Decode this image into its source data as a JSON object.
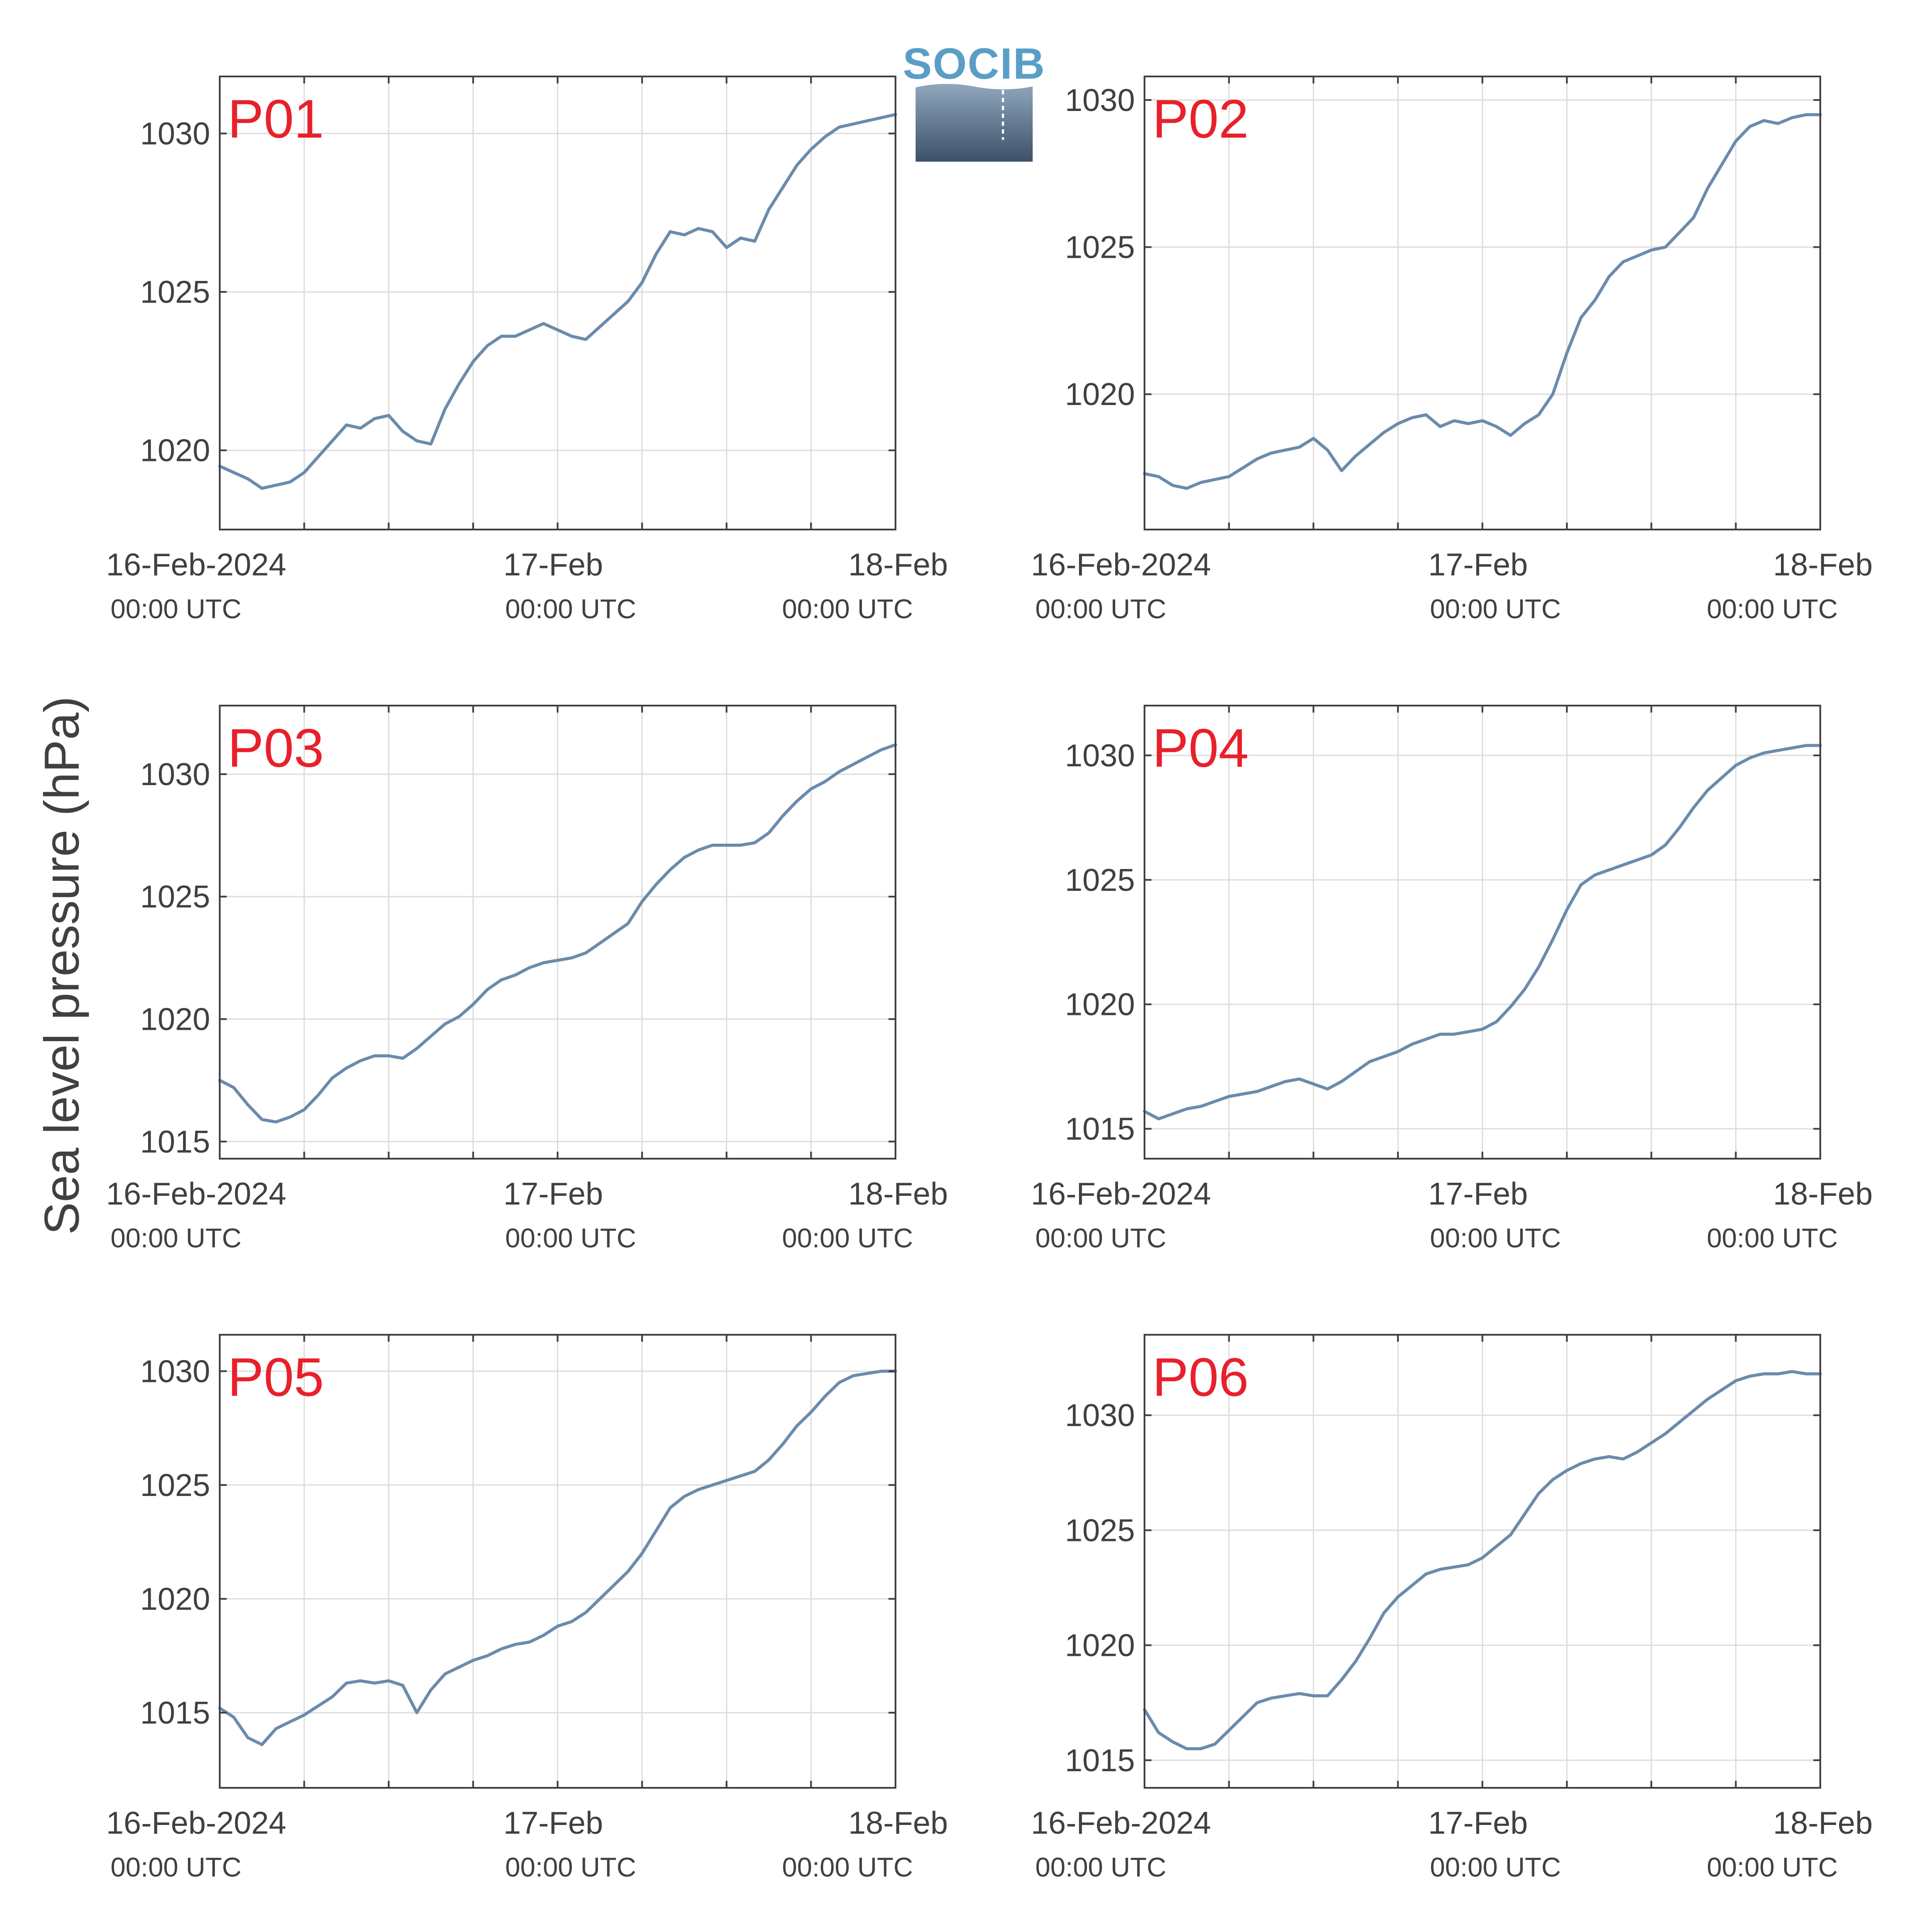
{
  "figure": {
    "ylabel": "Sea level pressure (hPa)",
    "logo_text": "SOCIB",
    "colors": {
      "line": "#6a8bac",
      "panel_label": "#e8202a",
      "grid": "#dddddd",
      "axis": "#404040"
    }
  },
  "chart_data": [
    {
      "type": "line",
      "label": "P01",
      "x_ticks": [
        {
          "line1": "16-Feb-2024",
          "line2": "00:00 UTC",
          "x": 0
        },
        {
          "line1": "17-Feb",
          "line2": "00:00 UTC",
          "x": 24
        },
        {
          "line1": "18-Feb",
          "line2": "00:00 UTC",
          "x": 48
        }
      ],
      "xlim": [
        0,
        48
      ],
      "ylim": [
        1017.5,
        1031.8
      ],
      "y_ticks": [
        1020,
        1025,
        1030
      ],
      "x": [
        0,
        1,
        2,
        3,
        4,
        5,
        6,
        7,
        8,
        9,
        10,
        11,
        12,
        13,
        14,
        15,
        16,
        17,
        18,
        19,
        20,
        21,
        22,
        23,
        24,
        25,
        26,
        27,
        28,
        29,
        30,
        31,
        32,
        33,
        34,
        35,
        36,
        37,
        38,
        39,
        40,
        41,
        42,
        43,
        44,
        45,
        46,
        47,
        48
      ],
      "y": [
        1019.5,
        1019.3,
        1019.1,
        1018.8,
        1018.9,
        1019.0,
        1019.3,
        1019.8,
        1020.3,
        1020.8,
        1020.7,
        1021.0,
        1021.1,
        1020.6,
        1020.3,
        1020.2,
        1021.3,
        1022.1,
        1022.8,
        1023.3,
        1023.6,
        1023.6,
        1023.8,
        1024.0,
        1023.8,
        1023.6,
        1023.5,
        1023.9,
        1024.3,
        1024.7,
        1025.3,
        1026.2,
        1026.9,
        1026.8,
        1027.0,
        1026.9,
        1026.4,
        1026.7,
        1026.6,
        1027.6,
        1028.3,
        1029.0,
        1029.5,
        1029.9,
        1030.2,
        1030.3,
        1030.4,
        1030.5,
        1030.6
      ]
    },
    {
      "type": "line",
      "label": "P02",
      "x_ticks": [
        {
          "line1": "16-Feb-2024",
          "line2": "00:00 UTC",
          "x": 0
        },
        {
          "line1": "17-Feb",
          "line2": "00:00 UTC",
          "x": 24
        },
        {
          "line1": "18-Feb",
          "line2": "00:00 UTC",
          "x": 48
        }
      ],
      "xlim": [
        0,
        48
      ],
      "ylim": [
        1015.4,
        1030.8
      ],
      "y_ticks": [
        1020,
        1025,
        1030
      ],
      "x": [
        0,
        1,
        2,
        3,
        4,
        5,
        6,
        7,
        8,
        9,
        10,
        11,
        12,
        13,
        14,
        15,
        16,
        17,
        18,
        19,
        20,
        21,
        22,
        23,
        24,
        25,
        26,
        27,
        28,
        29,
        30,
        31,
        32,
        33,
        34,
        35,
        36,
        37,
        38,
        39,
        40,
        41,
        42,
        43,
        44,
        45,
        46,
        47,
        48
      ],
      "y": [
        1017.3,
        1017.2,
        1016.9,
        1016.8,
        1017.0,
        1017.1,
        1017.2,
        1017.5,
        1017.8,
        1018.0,
        1018.1,
        1018.2,
        1018.5,
        1018.1,
        1017.4,
        1017.9,
        1018.3,
        1018.7,
        1019.0,
        1019.2,
        1019.3,
        1018.9,
        1019.1,
        1019.0,
        1019.1,
        1018.9,
        1018.6,
        1019.0,
        1019.3,
        1020.0,
        1021.4,
        1022.6,
        1023.2,
        1024.0,
        1024.5,
        1024.7,
        1024.9,
        1025.0,
        1025.5,
        1026.0,
        1027.0,
        1027.8,
        1028.6,
        1029.1,
        1029.3,
        1029.2,
        1029.4,
        1029.5,
        1029.5
      ]
    },
    {
      "type": "line",
      "label": "P03",
      "x_ticks": [
        {
          "line1": "16-Feb-2024",
          "line2": "00:00 UTC",
          "x": 0
        },
        {
          "line1": "17-Feb",
          "line2": "00:00 UTC",
          "x": 24
        },
        {
          "line1": "18-Feb",
          "line2": "00:00 UTC",
          "x": 48
        }
      ],
      "xlim": [
        0,
        48
      ],
      "ylim": [
        1014.3,
        1032.8
      ],
      "y_ticks": [
        1015,
        1020,
        1025,
        1030
      ],
      "x": [
        0,
        1,
        2,
        3,
        4,
        5,
        6,
        7,
        8,
        9,
        10,
        11,
        12,
        13,
        14,
        15,
        16,
        17,
        18,
        19,
        20,
        21,
        22,
        23,
        24,
        25,
        26,
        27,
        28,
        29,
        30,
        31,
        32,
        33,
        34,
        35,
        36,
        37,
        38,
        39,
        40,
        41,
        42,
        43,
        44,
        45,
        46,
        47,
        48
      ],
      "y": [
        1017.5,
        1017.2,
        1016.5,
        1015.9,
        1015.8,
        1016.0,
        1016.3,
        1016.9,
        1017.6,
        1018.0,
        1018.3,
        1018.5,
        1018.5,
        1018.4,
        1018.8,
        1019.3,
        1019.8,
        1020.1,
        1020.6,
        1021.2,
        1021.6,
        1021.8,
        1022.1,
        1022.3,
        1022.4,
        1022.5,
        1022.7,
        1023.1,
        1023.5,
        1023.9,
        1024.8,
        1025.5,
        1026.1,
        1026.6,
        1026.9,
        1027.1,
        1027.1,
        1027.1,
        1027.2,
        1027.6,
        1028.3,
        1028.9,
        1029.4,
        1029.7,
        1030.1,
        1030.4,
        1030.7,
        1031.0,
        1031.2
      ]
    },
    {
      "type": "line",
      "label": "P04",
      "x_ticks": [
        {
          "line1": "16-Feb-2024",
          "line2": "00:00 UTC",
          "x": 0
        },
        {
          "line1": "17-Feb",
          "line2": "00:00 UTC",
          "x": 24
        },
        {
          "line1": "18-Feb",
          "line2": "00:00 UTC",
          "x": 48
        }
      ],
      "xlim": [
        0,
        48
      ],
      "ylim": [
        1013.8,
        1032.0
      ],
      "y_ticks": [
        1015,
        1020,
        1025,
        1030
      ],
      "x": [
        0,
        1,
        2,
        3,
        4,
        5,
        6,
        7,
        8,
        9,
        10,
        11,
        12,
        13,
        14,
        15,
        16,
        17,
        18,
        19,
        20,
        21,
        22,
        23,
        24,
        25,
        26,
        27,
        28,
        29,
        30,
        31,
        32,
        33,
        34,
        35,
        36,
        37,
        38,
        39,
        40,
        41,
        42,
        43,
        44,
        45,
        46,
        47,
        48
      ],
      "y": [
        1015.7,
        1015.4,
        1015.6,
        1015.8,
        1015.9,
        1016.1,
        1016.3,
        1016.4,
        1016.5,
        1016.7,
        1016.9,
        1017.0,
        1016.8,
        1016.6,
        1016.9,
        1017.3,
        1017.7,
        1017.9,
        1018.1,
        1018.4,
        1018.6,
        1018.8,
        1018.8,
        1018.9,
        1019.0,
        1019.3,
        1019.9,
        1020.6,
        1021.5,
        1022.6,
        1023.8,
        1024.8,
        1025.2,
        1025.4,
        1025.6,
        1025.8,
        1026.0,
        1026.4,
        1027.1,
        1027.9,
        1028.6,
        1029.1,
        1029.6,
        1029.9,
        1030.1,
        1030.2,
        1030.3,
        1030.4,
        1030.4
      ]
    },
    {
      "type": "line",
      "label": "P05",
      "x_ticks": [
        {
          "line1": "16-Feb-2024",
          "line2": "00:00 UTC",
          "x": 0
        },
        {
          "line1": "17-Feb",
          "line2": "00:00 UTC",
          "x": 24
        },
        {
          "line1": "18-Feb",
          "line2": "00:00 UTC",
          "x": 48
        }
      ],
      "xlim": [
        0,
        48
      ],
      "ylim": [
        1011.7,
        1031.6
      ],
      "y_ticks": [
        1015,
        1020,
        1025,
        1030
      ],
      "x": [
        0,
        1,
        2,
        3,
        4,
        5,
        6,
        7,
        8,
        9,
        10,
        11,
        12,
        13,
        14,
        15,
        16,
        17,
        18,
        19,
        20,
        21,
        22,
        23,
        24,
        25,
        26,
        27,
        28,
        29,
        30,
        31,
        32,
        33,
        34,
        35,
        36,
        37,
        38,
        39,
        40,
        41,
        42,
        43,
        44,
        45,
        46,
        47,
        48
      ],
      "y": [
        1015.2,
        1014.8,
        1013.9,
        1013.6,
        1014.3,
        1014.6,
        1014.9,
        1015.3,
        1015.7,
        1016.3,
        1016.4,
        1016.3,
        1016.4,
        1016.2,
        1015.0,
        1016.0,
        1016.7,
        1017.0,
        1017.3,
        1017.5,
        1017.8,
        1018.0,
        1018.1,
        1018.4,
        1018.8,
        1019.0,
        1019.4,
        1020.0,
        1020.6,
        1021.2,
        1022.0,
        1023.0,
        1024.0,
        1024.5,
        1024.8,
        1025.0,
        1025.2,
        1025.4,
        1025.6,
        1026.1,
        1026.8,
        1027.6,
        1028.2,
        1028.9,
        1029.5,
        1029.8,
        1029.9,
        1030.0,
        1030.0
      ]
    },
    {
      "type": "line",
      "label": "P06",
      "x_ticks": [
        {
          "line1": "16-Feb-2024",
          "line2": "00:00 UTC",
          "x": 0
        },
        {
          "line1": "17-Feb",
          "line2": "00:00 UTC",
          "x": 24
        },
        {
          "line1": "18-Feb",
          "line2": "00:00 UTC",
          "x": 48
        }
      ],
      "xlim": [
        0,
        48
      ],
      "ylim": [
        1013.8,
        1033.5
      ],
      "y_ticks": [
        1015,
        1020,
        1025,
        1030
      ],
      "x": [
        0,
        1,
        2,
        3,
        4,
        5,
        6,
        7,
        8,
        9,
        10,
        11,
        12,
        13,
        14,
        15,
        16,
        17,
        18,
        19,
        20,
        21,
        22,
        23,
        24,
        25,
        26,
        27,
        28,
        29,
        30,
        31,
        32,
        33,
        34,
        35,
        36,
        37,
        38,
        39,
        40,
        41,
        42,
        43,
        44,
        45,
        46,
        47,
        48
      ],
      "y": [
        1017.2,
        1016.2,
        1015.8,
        1015.5,
        1015.5,
        1015.7,
        1016.3,
        1016.9,
        1017.5,
        1017.7,
        1017.8,
        1017.9,
        1017.8,
        1017.8,
        1018.5,
        1019.3,
        1020.3,
        1021.4,
        1022.1,
        1022.6,
        1023.1,
        1023.3,
        1023.4,
        1023.5,
        1023.8,
        1024.3,
        1024.8,
        1025.7,
        1026.6,
        1027.2,
        1027.6,
        1027.9,
        1028.1,
        1028.2,
        1028.1,
        1028.4,
        1028.8,
        1029.2,
        1029.7,
        1030.2,
        1030.7,
        1031.1,
        1031.5,
        1031.7,
        1031.8,
        1031.8,
        1031.9,
        1031.8,
        1031.8
      ]
    }
  ]
}
